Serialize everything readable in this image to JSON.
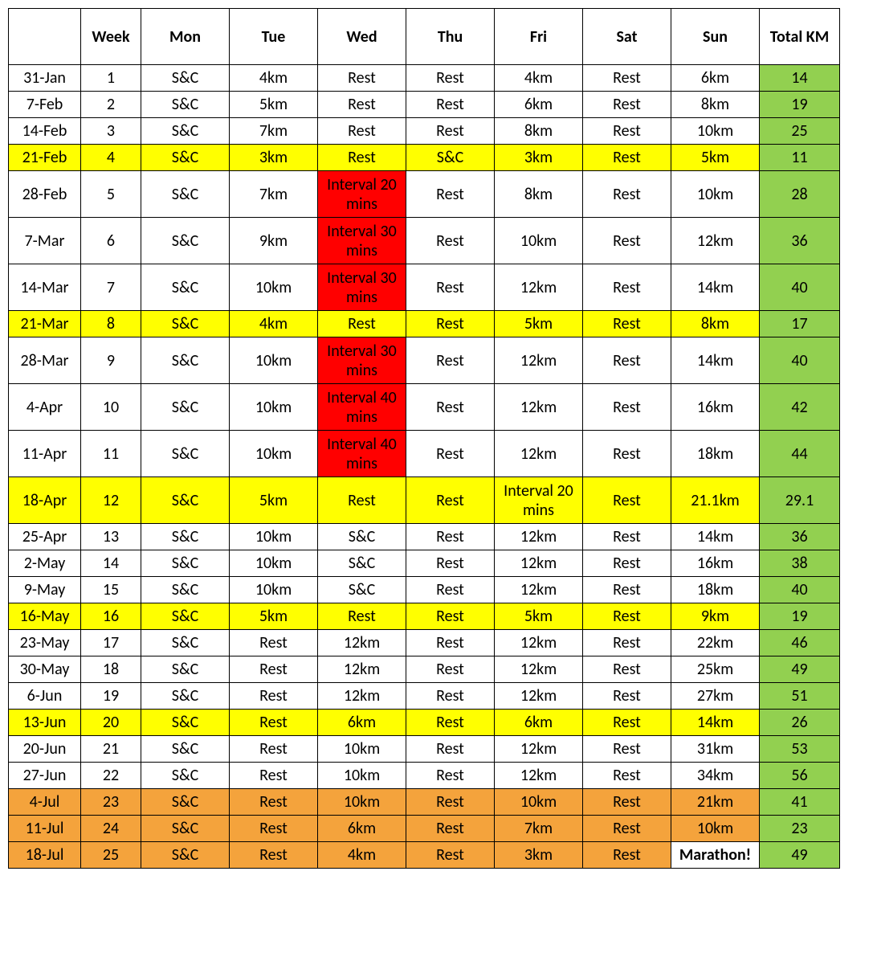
{
  "headers": [
    "",
    "Week",
    "Mon",
    "Tue",
    "Wed",
    "Thu",
    "Fri",
    "Sat",
    "Sun",
    "Total KM"
  ],
  "colors": {
    "none": "#ffffff",
    "yellow": "#ffff00",
    "red": "#ff0000",
    "orange": "#f4a33c",
    "green": "#92d050"
  },
  "header_fontsize": 20,
  "cell_fontsize": 20,
  "rows": [
    {
      "date": "31-Jan",
      "week": "1",
      "total": "14",
      "cells": [
        {
          "v": "S&C",
          "c": "none"
        },
        {
          "v": "4km",
          "c": "none"
        },
        {
          "v": "Rest",
          "c": "none"
        },
        {
          "v": "Rest",
          "c": "none"
        },
        {
          "v": "4km",
          "c": "none"
        },
        {
          "v": "Rest",
          "c": "none"
        },
        {
          "v": "6km",
          "c": "none"
        }
      ],
      "row_color": "none",
      "total_color": "green"
    },
    {
      "date": "7-Feb",
      "week": "2",
      "total": "19",
      "cells": [
        {
          "v": "S&C",
          "c": "none"
        },
        {
          "v": "5km",
          "c": "none"
        },
        {
          "v": "Rest",
          "c": "none"
        },
        {
          "v": "Rest",
          "c": "none"
        },
        {
          "v": "6km",
          "c": "none"
        },
        {
          "v": "Rest",
          "c": "none"
        },
        {
          "v": "8km",
          "c": "none"
        }
      ],
      "row_color": "none",
      "total_color": "green"
    },
    {
      "date": "14-Feb",
      "week": "3",
      "total": "25",
      "cells": [
        {
          "v": "S&C",
          "c": "none"
        },
        {
          "v": "7km",
          "c": "none"
        },
        {
          "v": "Rest",
          "c": "none"
        },
        {
          "v": "Rest",
          "c": "none"
        },
        {
          "v": "8km",
          "c": "none"
        },
        {
          "v": "Rest",
          "c": "none"
        },
        {
          "v": "10km",
          "c": "none"
        }
      ],
      "row_color": "none",
      "total_color": "green"
    },
    {
      "date": "21-Feb",
      "week": "4",
      "total": "11",
      "cells": [
        {
          "v": "S&C",
          "c": "yellow"
        },
        {
          "v": "3km",
          "c": "yellow"
        },
        {
          "v": "Rest",
          "c": "yellow"
        },
        {
          "v": "S&C",
          "c": "yellow"
        },
        {
          "v": "3km",
          "c": "yellow"
        },
        {
          "v": "Rest",
          "c": "yellow"
        },
        {
          "v": "5km",
          "c": "yellow"
        }
      ],
      "row_color": "yellow",
      "total_color": "green"
    },
    {
      "date": "28-Feb",
      "week": "5",
      "total": "28",
      "cells": [
        {
          "v": "S&C",
          "c": "none"
        },
        {
          "v": "7km",
          "c": "none"
        },
        {
          "v": "Interval 20 mins",
          "c": "red"
        },
        {
          "v": "Rest",
          "c": "none"
        },
        {
          "v": "8km",
          "c": "none"
        },
        {
          "v": "Rest",
          "c": "none"
        },
        {
          "v": "10km",
          "c": "none"
        }
      ],
      "row_color": "none",
      "total_color": "green",
      "tall": true
    },
    {
      "date": "7-Mar",
      "week": "6",
      "total": "36",
      "cells": [
        {
          "v": "S&C",
          "c": "none"
        },
        {
          "v": "9km",
          "c": "none"
        },
        {
          "v": "Interval 30 mins",
          "c": "red"
        },
        {
          "v": "Rest",
          "c": "none"
        },
        {
          "v": "10km",
          "c": "none"
        },
        {
          "v": "Rest",
          "c": "none"
        },
        {
          "v": "12km",
          "c": "none"
        }
      ],
      "row_color": "none",
      "total_color": "green",
      "tall": true
    },
    {
      "date": "14-Mar",
      "week": "7",
      "total": "40",
      "cells": [
        {
          "v": "S&C",
          "c": "none"
        },
        {
          "v": "10km",
          "c": "none"
        },
        {
          "v": "Interval 30 mins",
          "c": "red"
        },
        {
          "v": "Rest",
          "c": "none"
        },
        {
          "v": "12km",
          "c": "none"
        },
        {
          "v": "Rest",
          "c": "none"
        },
        {
          "v": "14km",
          "c": "none"
        }
      ],
      "row_color": "none",
      "total_color": "green",
      "tall": true
    },
    {
      "date": "21-Mar",
      "week": "8",
      "total": "17",
      "cells": [
        {
          "v": "S&C",
          "c": "yellow"
        },
        {
          "v": "4km",
          "c": "yellow"
        },
        {
          "v": "Rest",
          "c": "yellow"
        },
        {
          "v": "Rest",
          "c": "yellow"
        },
        {
          "v": "5km",
          "c": "yellow"
        },
        {
          "v": "Rest",
          "c": "yellow"
        },
        {
          "v": "8km",
          "c": "yellow"
        }
      ],
      "row_color": "yellow",
      "total_color": "green"
    },
    {
      "date": "28-Mar",
      "week": "9",
      "total": "40",
      "cells": [
        {
          "v": "S&C",
          "c": "none"
        },
        {
          "v": "10km",
          "c": "none"
        },
        {
          "v": "Interval 30 mins",
          "c": "red"
        },
        {
          "v": "Rest",
          "c": "none"
        },
        {
          "v": "12km",
          "c": "none"
        },
        {
          "v": "Rest",
          "c": "none"
        },
        {
          "v": "14km",
          "c": "none"
        }
      ],
      "row_color": "none",
      "total_color": "green",
      "tall": true
    },
    {
      "date": "4-Apr",
      "week": "10",
      "total": "42",
      "cells": [
        {
          "v": "S&C",
          "c": "none"
        },
        {
          "v": "10km",
          "c": "none"
        },
        {
          "v": "Interval 40 mins",
          "c": "red"
        },
        {
          "v": "Rest",
          "c": "none"
        },
        {
          "v": "12km",
          "c": "none"
        },
        {
          "v": "Rest",
          "c": "none"
        },
        {
          "v": "16km",
          "c": "none"
        }
      ],
      "row_color": "none",
      "total_color": "green",
      "tall": true
    },
    {
      "date": "11-Apr",
      "week": "11",
      "total": "44",
      "cells": [
        {
          "v": "S&C",
          "c": "none"
        },
        {
          "v": "10km",
          "c": "none"
        },
        {
          "v": "Interval 40 mins",
          "c": "red"
        },
        {
          "v": "Rest",
          "c": "none"
        },
        {
          "v": "12km",
          "c": "none"
        },
        {
          "v": "Rest",
          "c": "none"
        },
        {
          "v": "18km",
          "c": "none"
        }
      ],
      "row_color": "none",
      "total_color": "green",
      "tall": true
    },
    {
      "date": "18-Apr",
      "week": "12",
      "total": "29.1",
      "cells": [
        {
          "v": "S&C",
          "c": "yellow"
        },
        {
          "v": "5km",
          "c": "yellow"
        },
        {
          "v": "Rest",
          "c": "yellow"
        },
        {
          "v": "Rest",
          "c": "yellow"
        },
        {
          "v": "Interval 20 mins",
          "c": "yellow"
        },
        {
          "v": "Rest",
          "c": "yellow"
        },
        {
          "v": "21.1km",
          "c": "yellow"
        }
      ],
      "row_color": "yellow",
      "total_color": "green",
      "tall": true
    },
    {
      "date": "25-Apr",
      "week": "13",
      "total": "36",
      "cells": [
        {
          "v": "S&C",
          "c": "none"
        },
        {
          "v": "10km",
          "c": "none"
        },
        {
          "v": "S&C",
          "c": "none"
        },
        {
          "v": "Rest",
          "c": "none"
        },
        {
          "v": "12km",
          "c": "none"
        },
        {
          "v": "Rest",
          "c": "none"
        },
        {
          "v": "14km",
          "c": "none"
        }
      ],
      "row_color": "none",
      "total_color": "green"
    },
    {
      "date": "2-May",
      "week": "14",
      "total": "38",
      "cells": [
        {
          "v": "S&C",
          "c": "none"
        },
        {
          "v": "10km",
          "c": "none"
        },
        {
          "v": "S&C",
          "c": "none"
        },
        {
          "v": "Rest",
          "c": "none"
        },
        {
          "v": "12km",
          "c": "none"
        },
        {
          "v": "Rest",
          "c": "none"
        },
        {
          "v": "16km",
          "c": "none"
        }
      ],
      "row_color": "none",
      "total_color": "green"
    },
    {
      "date": "9-May",
      "week": "15",
      "total": "40",
      "cells": [
        {
          "v": "S&C",
          "c": "none"
        },
        {
          "v": "10km",
          "c": "none"
        },
        {
          "v": "S&C",
          "c": "none"
        },
        {
          "v": "Rest",
          "c": "none"
        },
        {
          "v": "12km",
          "c": "none"
        },
        {
          "v": "Rest",
          "c": "none"
        },
        {
          "v": "18km",
          "c": "none"
        }
      ],
      "row_color": "none",
      "total_color": "green"
    },
    {
      "date": "16-May",
      "week": "16",
      "total": "19",
      "cells": [
        {
          "v": "S&C",
          "c": "yellow"
        },
        {
          "v": "5km",
          "c": "yellow"
        },
        {
          "v": "Rest",
          "c": "yellow"
        },
        {
          "v": "Rest",
          "c": "yellow"
        },
        {
          "v": "5km",
          "c": "yellow"
        },
        {
          "v": "Rest",
          "c": "yellow"
        },
        {
          "v": "9km",
          "c": "yellow"
        }
      ],
      "row_color": "yellow",
      "total_color": "green"
    },
    {
      "date": "23-May",
      "week": "17",
      "total": "46",
      "cells": [
        {
          "v": "S&C",
          "c": "none"
        },
        {
          "v": "Rest",
          "c": "none"
        },
        {
          "v": "12km",
          "c": "none"
        },
        {
          "v": "Rest",
          "c": "none"
        },
        {
          "v": "12km",
          "c": "none"
        },
        {
          "v": "Rest",
          "c": "none"
        },
        {
          "v": "22km",
          "c": "none"
        }
      ],
      "row_color": "none",
      "total_color": "green"
    },
    {
      "date": "30-May",
      "week": "18",
      "total": "49",
      "cells": [
        {
          "v": "S&C",
          "c": "none"
        },
        {
          "v": "Rest",
          "c": "none"
        },
        {
          "v": "12km",
          "c": "none"
        },
        {
          "v": "Rest",
          "c": "none"
        },
        {
          "v": "12km",
          "c": "none"
        },
        {
          "v": "Rest",
          "c": "none"
        },
        {
          "v": "25km",
          "c": "none"
        }
      ],
      "row_color": "none",
      "total_color": "green"
    },
    {
      "date": "6-Jun",
      "week": "19",
      "total": "51",
      "cells": [
        {
          "v": "S&C",
          "c": "none"
        },
        {
          "v": "Rest",
          "c": "none"
        },
        {
          "v": "12km",
          "c": "none"
        },
        {
          "v": "Rest",
          "c": "none"
        },
        {
          "v": "12km",
          "c": "none"
        },
        {
          "v": "Rest",
          "c": "none"
        },
        {
          "v": "27km",
          "c": "none"
        }
      ],
      "row_color": "none",
      "total_color": "green"
    },
    {
      "date": "13-Jun",
      "week": "20",
      "total": "26",
      "cells": [
        {
          "v": "S&C",
          "c": "yellow"
        },
        {
          "v": "Rest",
          "c": "yellow"
        },
        {
          "v": "6km",
          "c": "yellow"
        },
        {
          "v": "Rest",
          "c": "yellow"
        },
        {
          "v": "6km",
          "c": "yellow"
        },
        {
          "v": "Rest",
          "c": "yellow"
        },
        {
          "v": "14km",
          "c": "yellow"
        }
      ],
      "row_color": "yellow",
      "total_color": "green"
    },
    {
      "date": "20-Jun",
      "week": "21",
      "total": "53",
      "cells": [
        {
          "v": "S&C",
          "c": "none"
        },
        {
          "v": "Rest",
          "c": "none"
        },
        {
          "v": "10km",
          "c": "none"
        },
        {
          "v": "Rest",
          "c": "none"
        },
        {
          "v": "12km",
          "c": "none"
        },
        {
          "v": "Rest",
          "c": "none"
        },
        {
          "v": "31km",
          "c": "none"
        }
      ],
      "row_color": "none",
      "total_color": "green"
    },
    {
      "date": "27-Jun",
      "week": "22",
      "total": "56",
      "cells": [
        {
          "v": "S&C",
          "c": "none"
        },
        {
          "v": "Rest",
          "c": "none"
        },
        {
          "v": "10km",
          "c": "none"
        },
        {
          "v": "Rest",
          "c": "none"
        },
        {
          "v": "12km",
          "c": "none"
        },
        {
          "v": "Rest",
          "c": "none"
        },
        {
          "v": "34km",
          "c": "none"
        }
      ],
      "row_color": "none",
      "total_color": "green"
    },
    {
      "date": "4-Jul",
      "week": "23",
      "total": "41",
      "cells": [
        {
          "v": "S&C",
          "c": "orange"
        },
        {
          "v": "Rest",
          "c": "orange"
        },
        {
          "v": "10km",
          "c": "orange"
        },
        {
          "v": "Rest",
          "c": "orange"
        },
        {
          "v": "10km",
          "c": "orange"
        },
        {
          "v": "Rest",
          "c": "orange"
        },
        {
          "v": "21km",
          "c": "orange"
        }
      ],
      "row_color": "orange",
      "total_color": "green"
    },
    {
      "date": "11-Jul",
      "week": "24",
      "total": "23",
      "cells": [
        {
          "v": "S&C",
          "c": "orange"
        },
        {
          "v": "Rest",
          "c": "orange"
        },
        {
          "v": "6km",
          "c": "orange"
        },
        {
          "v": "Rest",
          "c": "orange"
        },
        {
          "v": "7km",
          "c": "orange"
        },
        {
          "v": "Rest",
          "c": "orange"
        },
        {
          "v": "10km",
          "c": "orange"
        }
      ],
      "row_color": "orange",
      "total_color": "green"
    },
    {
      "date": "18-Jul",
      "week": "25",
      "total": "49",
      "cells": [
        {
          "v": "S&C",
          "c": "orange"
        },
        {
          "v": "Rest",
          "c": "orange"
        },
        {
          "v": "4km",
          "c": "orange"
        },
        {
          "v": "Rest",
          "c": "orange"
        },
        {
          "v": "3km",
          "c": "orange"
        },
        {
          "v": "Rest",
          "c": "orange"
        },
        {
          "v": "Marathon!",
          "c": "none",
          "bold": true
        }
      ],
      "row_color": "orange",
      "total_color": "green"
    }
  ]
}
